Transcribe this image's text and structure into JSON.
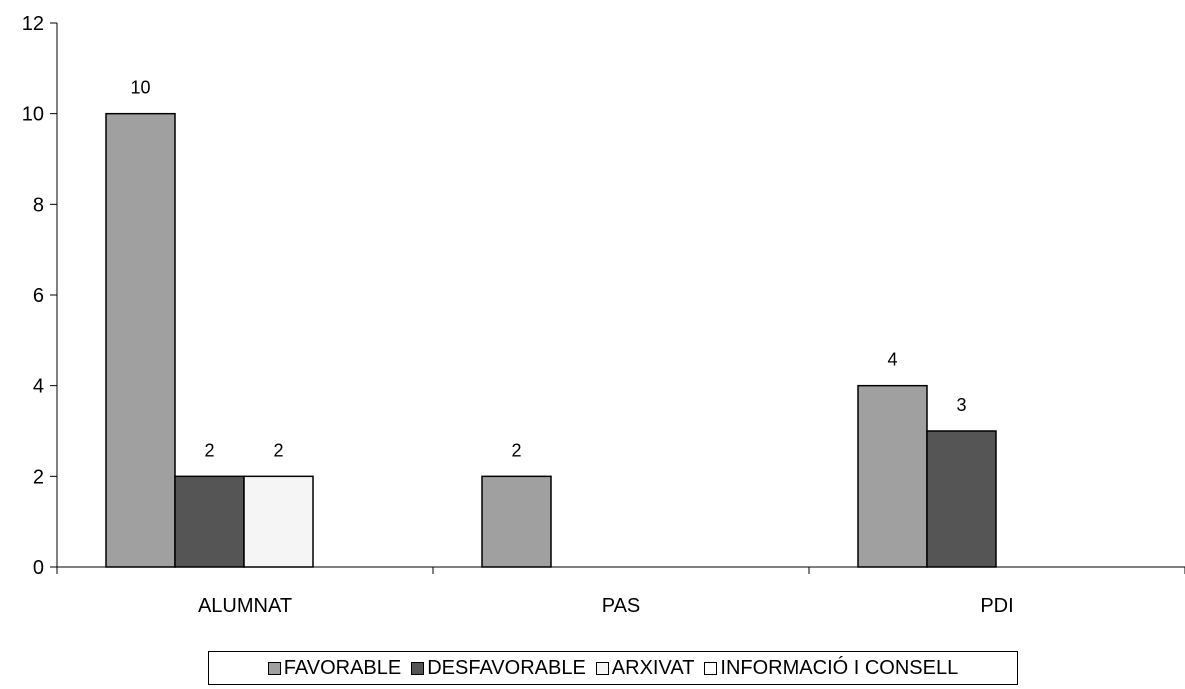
{
  "chart_data": {
    "type": "bar",
    "categories": [
      "ALUMNAT",
      "PAS",
      "PDI"
    ],
    "series": [
      {
        "name": "FAVORABLE",
        "values": [
          10,
          2,
          4
        ],
        "color": "#a0a0a0"
      },
      {
        "name": "DESFAVORABLE",
        "values": [
          2,
          null,
          3
        ],
        "color": "#555555"
      },
      {
        "name": "ARXIVAT",
        "values": [
          2,
          null,
          null
        ],
        "color": "#f5f5f5"
      },
      {
        "name": "INFORMACIÓ I CONSELL",
        "values": [
          null,
          null,
          null
        ],
        "color": "#ffffff"
      }
    ],
    "data_labels": {
      "FAVORABLE": [
        "10",
        "2",
        "4"
      ],
      "DESFAVORABLE": [
        "2",
        "",
        "3"
      ],
      "ARXIVAT": [
        "2",
        "",
        ""
      ],
      "INFORMACIÓ I CONSELL": [
        "",
        "",
        ""
      ]
    },
    "ylim": [
      0,
      12
    ],
    "yticks": [
      0,
      2,
      4,
      6,
      8,
      10,
      12
    ],
    "ytick_labels": [
      "0",
      "2",
      "4",
      "6",
      "8",
      "10",
      "12"
    ],
    "grid": false,
    "legend_position": "bottom",
    "title": "",
    "xlabel": "",
    "ylabel": ""
  }
}
